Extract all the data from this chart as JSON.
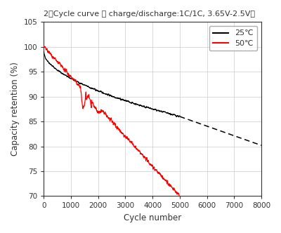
{
  "title": "2、Cycle curve （ charge/discharge:1C/1C, 3.65V-2.5V）",
  "xlabel": "Cycle number",
  "ylabel": "Capacity retention (%)",
  "xlim": [
    0,
    8000
  ],
  "ylim": [
    70,
    105
  ],
  "xticks": [
    0,
    1000,
    2000,
    3000,
    4000,
    5000,
    6000,
    7000,
    8000
  ],
  "yticks": [
    70,
    75,
    80,
    85,
    90,
    95,
    100,
    105
  ],
  "legend_labels": [
    "25℃",
    "50℃"
  ],
  "legend_colors": [
    "#000000",
    "#ff0000"
  ],
  "bg_color": "#ffffff",
  "grid_color": "#cccccc",
  "noise_seed": 42,
  "black_start_y": 99.0,
  "black_solid_end_x": 5000,
  "black_solid_end_y": 86.0,
  "black_dashed_end_x": 8000,
  "black_dashed_end_y": 80.2,
  "red_start_y": 100.0,
  "red_solid_end_x": 5000,
  "red_solid_end_y": 70.0
}
